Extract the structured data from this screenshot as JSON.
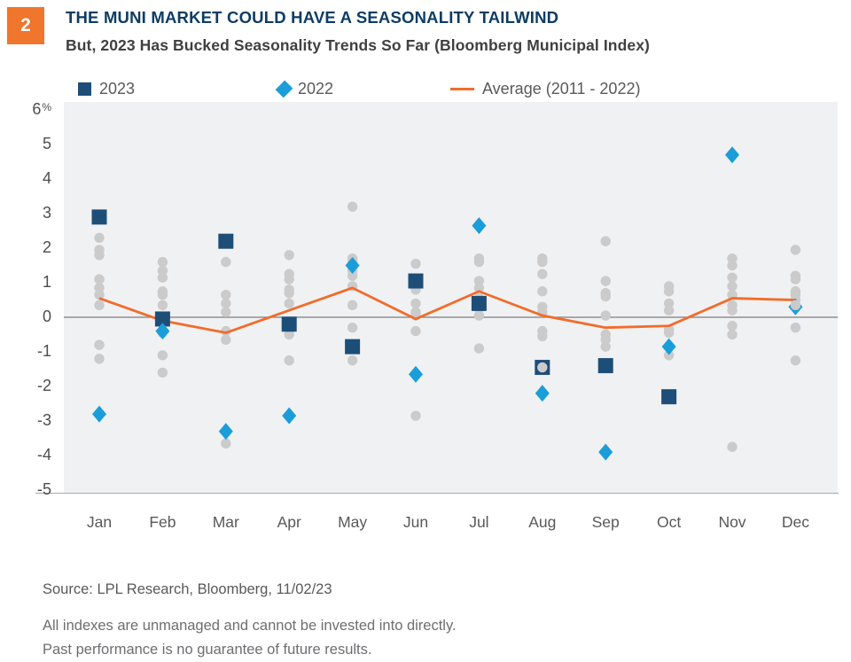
{
  "badge": "2",
  "header": {
    "title": "THE MUNI MARKET COULD HAVE A SEASONALITY TAILWIND",
    "subtitle": "But, 2023 Has Bucked Seasonality Trends So Far (Bloomberg Municipal Index)"
  },
  "legend": {
    "items": [
      {
        "label": "2023",
        "marker": "square",
        "color": "#1d4e78"
      },
      {
        "label": "2022",
        "marker": "diamond",
        "color": "#1b9dd9"
      },
      {
        "label": "Average (2011 - 2022)",
        "marker": "line",
        "color": "#f26c2a"
      }
    ]
  },
  "chart_data": {
    "type": "scatter",
    "title": "THE MUNI MARKET COULD HAVE A SEASONALITY TAILWIND",
    "subtitle": "But, 2023 Has Bucked Seasonality Trends So Far (Bloomberg Municipal Index)",
    "categories": [
      "Jan",
      "Feb",
      "Mar",
      "Apr",
      "May",
      "Jun",
      "Jul",
      "Aug",
      "Sep",
      "Oct",
      "Nov",
      "Dec"
    ],
    "ylim": [
      -5,
      6
    ],
    "yticks": [
      6,
      5,
      4,
      3,
      2,
      1,
      0,
      -1,
      -2,
      -3,
      -4,
      -5
    ],
    "ytick_first_suffix": "%",
    "grid": false,
    "legend_position": "top",
    "series": [
      {
        "name": "2023",
        "type": "scatter-square",
        "color": "#1d4e78",
        "values": [
          2.9,
          -0.05,
          2.2,
          -0.2,
          -0.85,
          1.05,
          0.4,
          -1.45,
          -1.4,
          -2.3,
          null,
          null
        ]
      },
      {
        "name": "2022",
        "type": "scatter-diamond",
        "color": "#1b9dd9",
        "values": [
          -2.8,
          -0.4,
          -3.3,
          -2.85,
          1.5,
          -1.65,
          2.65,
          -2.2,
          -3.9,
          -0.85,
          4.7,
          0.3
        ]
      },
      {
        "name": "Average (2011 - 2022)",
        "type": "line",
        "color": "#f26c2a",
        "values": [
          0.55,
          -0.1,
          -0.45,
          0.2,
          0.85,
          -0.05,
          0.75,
          0.05,
          -0.3,
          -0.25,
          0.55,
          0.5
        ]
      }
    ],
    "other_years_dots": {
      "Jan": [
        2.3,
        1.95,
        1.8,
        1.1,
        0.85,
        0.65,
        0.35,
        -0.8,
        -1.2
      ],
      "Feb": [
        1.6,
        1.35,
        1.15,
        0.75,
        0.65,
        0.35,
        -0.45,
        -1.1,
        -1.6
      ],
      "Mar": [
        1.6,
        0.65,
        0.4,
        0.15,
        -0.4,
        -0.65,
        -3.65
      ],
      "Apr": [
        1.8,
        1.25,
        1.1,
        0.8,
        0.7,
        0.4,
        -0.35,
        -0.5,
        -1.25
      ],
      "May": [
        3.2,
        1.7,
        1.6,
        1.35,
        1.2,
        0.9,
        0.35,
        -0.3,
        -1.25
      ],
      "Jun": [
        1.55,
        0.8,
        0.4,
        0.15,
        0.05,
        -0.4,
        -2.85
      ],
      "Jul": [
        1.7,
        1.6,
        1.05,
        0.85,
        0.55,
        0.25,
        0.05,
        -0.9
      ],
      "Aug": [
        1.7,
        1.6,
        1.25,
        0.75,
        0.3,
        0.15,
        -0.4,
        -0.55
      ],
      "Sep": [
        2.2,
        1.05,
        0.7,
        0.6,
        0.05,
        -0.5,
        -0.65,
        -0.85
      ],
      "Oct": [
        0.9,
        0.75,
        0.4,
        0.2,
        -0.35,
        -0.45,
        -1.1
      ],
      "Nov": [
        1.7,
        1.5,
        1.15,
        0.9,
        0.65,
        0.35,
        0.2,
        -0.25,
        -0.5,
        -3.75
      ],
      "Dec": [
        1.95,
        1.2,
        1.1,
        0.75,
        0.65,
        0.5,
        -0.3,
        -1.25
      ]
    },
    "overlay_dots": [
      {
        "month": "Aug",
        "value": -1.45
      },
      {
        "month": "Dec",
        "value": 0.35
      }
    ],
    "dot_color": "#cbcbcb",
    "zero_line_color": "#7e7e7e",
    "plot_background": "#f0f1f3"
  },
  "footer": {
    "source": "Source: LPL Research, Bloomberg,  11/02/23",
    "disclaimer1": "All indexes are unmanaged and cannot be invested into directly.",
    "disclaimer2": "Past performance is no guarantee of future results."
  }
}
